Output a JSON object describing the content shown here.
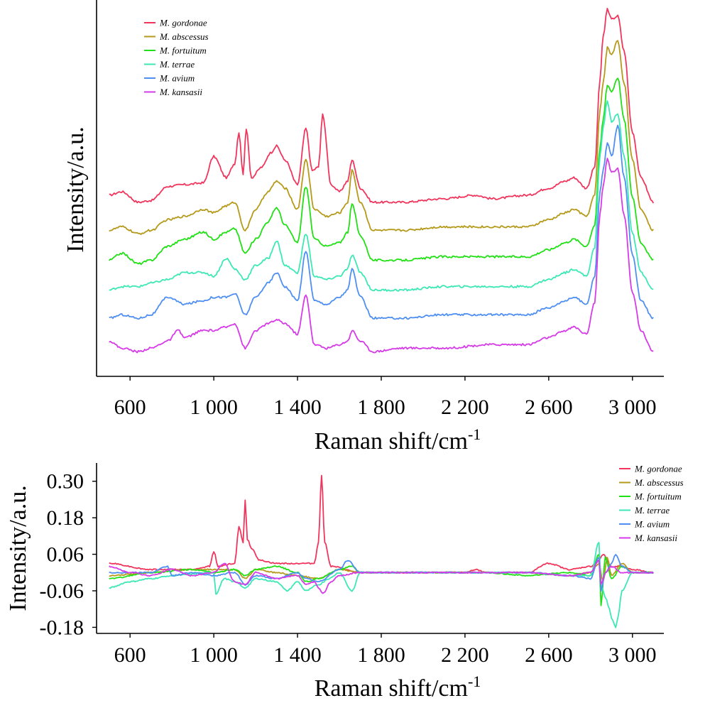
{
  "chart_data": [
    {
      "type": "line",
      "title": "",
      "xlabel": "Raman shift/cm",
      "xlabel_sup": "-1",
      "ylabel": "Intensity/a.u.",
      "xlim": [
        440,
        3150
      ],
      "ylim": [
        0,
        1
      ],
      "y_ticks_shown": false,
      "x_ticks": [
        600,
        1000,
        1400,
        1800,
        2200,
        2600,
        3000
      ],
      "x_tick_labels": [
        "600",
        "1 000",
        "1 400",
        "1 800",
        "2 200",
        "2 600",
        "3 000"
      ],
      "legend_position": "top-left",
      "grid": false,
      "series": [
        {
          "name": "M. gordonae",
          "color": "#f0365d",
          "offset": 0.455,
          "x": [
            500,
            560,
            640,
            700,
            780,
            860,
            950,
            1000,
            1060,
            1100,
            1120,
            1140,
            1155,
            1180,
            1230,
            1270,
            1300,
            1340,
            1400,
            1440,
            1470,
            1500,
            1520,
            1560,
            1600,
            1640,
            1660,
            1700,
            1760,
            1900,
            2100,
            2250,
            2330,
            2500,
            2600,
            2680,
            2720,
            2780,
            2820,
            2845,
            2860,
            2880,
            2900,
            2930,
            2960,
            3000,
            3040,
            3100
          ],
          "y": [
            0.02,
            0.03,
            0.0,
            0.005,
            0.045,
            0.05,
            0.055,
            0.13,
            0.07,
            0.11,
            0.2,
            0.08,
            0.21,
            0.07,
            0.1,
            0.14,
            0.16,
            0.12,
            0.05,
            0.21,
            0.09,
            0.1,
            0.25,
            0.05,
            0.03,
            0.06,
            0.12,
            0.04,
            0.0,
            0.0,
            0.01,
            0.02,
            0.01,
            0.02,
            0.04,
            0.06,
            0.07,
            0.04,
            0.1,
            0.35,
            0.47,
            0.55,
            0.52,
            0.53,
            0.43,
            0.2,
            0.07,
            0.0
          ]
        },
        {
          "name": "M. abscessus",
          "color": "#b59a1b",
          "offset": 0.375,
          "x": [
            500,
            560,
            640,
            700,
            780,
            860,
            950,
            1000,
            1060,
            1100,
            1150,
            1200,
            1260,
            1300,
            1340,
            1400,
            1440,
            1480,
            1540,
            1600,
            1640,
            1660,
            1700,
            1760,
            1900,
            2100,
            2330,
            2500,
            2600,
            2680,
            2720,
            2780,
            2820,
            2845,
            2860,
            2880,
            2900,
            2930,
            2960,
            3000,
            3040,
            3100
          ],
          "y": [
            0.0,
            0.01,
            -0.01,
            0.0,
            0.03,
            0.04,
            0.06,
            0.05,
            0.07,
            0.08,
            0.0,
            0.06,
            0.11,
            0.14,
            0.12,
            0.06,
            0.2,
            0.06,
            0.04,
            0.05,
            0.08,
            0.17,
            0.08,
            0.0,
            0.0,
            0.01,
            0.01,
            0.01,
            0.03,
            0.05,
            0.06,
            0.04,
            0.1,
            0.34,
            0.42,
            0.52,
            0.5,
            0.54,
            0.42,
            0.2,
            0.06,
            0.0
          ]
        },
        {
          "name": "M. fortuitum",
          "color": "#22e016",
          "offset": 0.29,
          "x": [
            500,
            560,
            640,
            700,
            780,
            860,
            950,
            1000,
            1060,
            1100,
            1150,
            1200,
            1260,
            1300,
            1340,
            1400,
            1440,
            1480,
            1540,
            1600,
            1640,
            1660,
            1700,
            1760,
            1900,
            2100,
            2330,
            2500,
            2600,
            2680,
            2720,
            2780,
            2820,
            2845,
            2860,
            2880,
            2900,
            2930,
            2960,
            3000,
            3040,
            3100
          ],
          "y": [
            0.0,
            0.02,
            -0.01,
            0.0,
            0.04,
            0.06,
            0.08,
            0.06,
            0.08,
            0.09,
            0.02,
            0.06,
            0.11,
            0.15,
            0.1,
            0.05,
            0.21,
            0.06,
            0.04,
            0.05,
            0.08,
            0.16,
            0.07,
            0.0,
            0.0,
            0.01,
            0.01,
            0.01,
            0.03,
            0.05,
            0.06,
            0.04,
            0.1,
            0.32,
            0.4,
            0.5,
            0.48,
            0.52,
            0.4,
            0.18,
            0.05,
            0.0
          ]
        },
        {
          "name": "M. terrae",
          "color": "#3de8b5",
          "offset": 0.205,
          "x": [
            500,
            560,
            640,
            700,
            780,
            860,
            950,
            1000,
            1060,
            1100,
            1150,
            1200,
            1260,
            1300,
            1340,
            1400,
            1440,
            1480,
            1540,
            1600,
            1640,
            1660,
            1700,
            1760,
            1900,
            2100,
            2330,
            2500,
            2600,
            2680,
            2720,
            2780,
            2820,
            2845,
            2860,
            2880,
            2900,
            2930,
            2960,
            3000,
            3040,
            3100
          ],
          "y": [
            0.0,
            0.01,
            0.01,
            0.02,
            0.03,
            0.05,
            0.05,
            0.04,
            0.09,
            0.06,
            0.03,
            0.07,
            0.09,
            0.14,
            0.07,
            0.05,
            0.16,
            0.04,
            0.03,
            0.04,
            0.06,
            0.1,
            0.05,
            0.0,
            0.0,
            0.01,
            0.01,
            0.01,
            0.03,
            0.05,
            0.06,
            0.04,
            0.12,
            0.38,
            0.46,
            0.54,
            0.48,
            0.5,
            0.38,
            0.16,
            0.05,
            0.0
          ]
        },
        {
          "name": "M. avium",
          "color": "#4f8ff2",
          "offset": 0.125,
          "x": [
            500,
            560,
            640,
            700,
            780,
            860,
            950,
            1000,
            1060,
            1100,
            1150,
            1200,
            1260,
            1300,
            1340,
            1400,
            1440,
            1480,
            1540,
            1600,
            1640,
            1660,
            1700,
            1760,
            1900,
            2100,
            2330,
            2500,
            2600,
            2680,
            2720,
            2780,
            2820,
            2845,
            2860,
            2880,
            2900,
            2930,
            2960,
            3000,
            3040,
            3100
          ],
          "y": [
            0.0,
            0.01,
            0.0,
            0.01,
            0.06,
            0.04,
            0.05,
            0.06,
            0.06,
            0.07,
            0.01,
            0.06,
            0.1,
            0.13,
            0.09,
            0.05,
            0.19,
            0.05,
            0.04,
            0.06,
            0.08,
            0.14,
            0.06,
            0.0,
            0.0,
            0.01,
            0.01,
            0.01,
            0.03,
            0.05,
            0.06,
            0.04,
            0.12,
            0.36,
            0.42,
            0.5,
            0.46,
            0.55,
            0.4,
            0.18,
            0.05,
            0.0
          ]
        },
        {
          "name": "M. kansasii",
          "color": "#d63be8",
          "offset": 0.04,
          "x": [
            500,
            560,
            640,
            700,
            780,
            830,
            860,
            950,
            1000,
            1060,
            1100,
            1150,
            1200,
            1260,
            1300,
            1340,
            1400,
            1440,
            1480,
            1540,
            1600,
            1640,
            1660,
            1700,
            1760,
            1900,
            2100,
            2330,
            2500,
            2600,
            2680,
            2720,
            2780,
            2820,
            2845,
            2860,
            2880,
            2900,
            2930,
            2960,
            3000,
            3040,
            3100
          ],
          "y": [
            0.02,
            0.0,
            -0.01,
            0.0,
            0.02,
            0.05,
            0.03,
            0.05,
            0.05,
            0.06,
            0.07,
            0.0,
            0.05,
            0.07,
            0.08,
            0.07,
            0.04,
            0.15,
            0.01,
            0.0,
            0.01,
            0.02,
            0.05,
            0.02,
            -0.01,
            0.0,
            0.0,
            0.01,
            0.01,
            0.03,
            0.05,
            0.06,
            0.04,
            0.13,
            0.38,
            0.46,
            0.54,
            0.5,
            0.51,
            0.38,
            0.16,
            0.05,
            -0.01
          ]
        }
      ]
    },
    {
      "type": "line",
      "title": "",
      "xlabel": "Raman shift/cm",
      "xlabel_sup": "-1",
      "ylabel": "Intensity/a.u.",
      "xlim": [
        440,
        3150
      ],
      "ylim": [
        -0.2,
        0.36
      ],
      "x_ticks": [
        600,
        1000,
        1400,
        1800,
        2200,
        2600,
        3000
      ],
      "x_tick_labels": [
        "600",
        "1 000",
        "1 400",
        "1 800",
        "2 200",
        "2 600",
        "3 000"
      ],
      "y_ticks": [
        0.3,
        0.18,
        0.06,
        -0.06,
        -0.18
      ],
      "y_tick_labels": [
        "0.30",
        "0.18",
        "0.06",
        "-0.06",
        "-0.18"
      ],
      "legend_position": "top-right",
      "grid": false,
      "series": [
        {
          "name": "M. gordonae",
          "color": "#f0365d",
          "x": [
            500,
            700,
            900,
            980,
            1000,
            1020,
            1100,
            1120,
            1140,
            1150,
            1160,
            1180,
            1220,
            1300,
            1400,
            1480,
            1500,
            1515,
            1530,
            1560,
            1700,
            2000,
            2200,
            2250,
            2300,
            2500,
            2600,
            2700,
            2800,
            2840,
            2860,
            2900,
            2950,
            3000,
            3100
          ],
          "y": [
            0.03,
            0.01,
            0.01,
            0.02,
            0.07,
            0.02,
            0.03,
            0.15,
            0.1,
            0.24,
            0.11,
            0.08,
            0.04,
            0.03,
            0.03,
            0.03,
            0.1,
            0.32,
            0.1,
            0.02,
            0.0,
            0.0,
            0.0,
            0.01,
            0.0,
            0.0,
            0.03,
            0.01,
            0.02,
            0.04,
            0.06,
            0.02,
            0.02,
            0.01,
            0.0
          ]
        },
        {
          "name": "M. abscessus",
          "color": "#b59a1b",
          "x": [
            500,
            700,
            900,
            1000,
            1100,
            1150,
            1200,
            1300,
            1400,
            1500,
            1600,
            1700,
            2000,
            2300,
            2500,
            2700,
            2800,
            2840,
            2860,
            2880,
            2900,
            2950,
            3000,
            3100
          ],
          "y": [
            -0.01,
            0.0,
            0.01,
            0.01,
            0.01,
            -0.02,
            0.01,
            0.0,
            -0.01,
            -0.02,
            0.01,
            0.0,
            0.0,
            0.0,
            0.0,
            -0.01,
            0.0,
            0.03,
            -0.03,
            0.05,
            -0.01,
            0.03,
            0.0,
            0.0
          ]
        },
        {
          "name": "M. fortuitum",
          "color": "#22e016",
          "x": [
            500,
            700,
            900,
            1000,
            1100,
            1150,
            1200,
            1300,
            1400,
            1440,
            1500,
            1600,
            1660,
            1700,
            2000,
            2300,
            2500,
            2700,
            2800,
            2840,
            2850,
            2870,
            2900,
            2950,
            3000,
            3100
          ],
          "y": [
            -0.02,
            0.0,
            0.01,
            0.0,
            0.01,
            -0.01,
            0.01,
            0.02,
            0.0,
            -0.03,
            -0.02,
            0.01,
            0.02,
            0.0,
            0.0,
            0.0,
            -0.01,
            0.0,
            -0.01,
            0.06,
            -0.11,
            0.05,
            -0.02,
            0.02,
            0.0,
            0.0
          ]
        },
        {
          "name": "M. terrae",
          "color": "#3de8b5",
          "x": [
            500,
            600,
            700,
            800,
            1000,
            1010,
            1050,
            1100,
            1150,
            1200,
            1300,
            1350,
            1400,
            1440,
            1500,
            1550,
            1600,
            1660,
            1700,
            2000,
            2300,
            2500,
            2700,
            2800,
            2840,
            2850,
            2870,
            2890,
            2900,
            2920,
            2930,
            2950,
            3000,
            3100
          ],
          "y": [
            -0.05,
            -0.03,
            -0.02,
            -0.01,
            0.0,
            -0.07,
            -0.02,
            -0.03,
            -0.05,
            -0.02,
            -0.03,
            -0.06,
            -0.03,
            -0.06,
            -0.04,
            -0.02,
            0.0,
            -0.06,
            0.0,
            0.0,
            0.0,
            0.0,
            -0.01,
            -0.01,
            0.1,
            -0.04,
            -0.08,
            -0.12,
            -0.15,
            -0.18,
            -0.15,
            -0.06,
            0.0,
            0.0
          ]
        },
        {
          "name": "M. avium",
          "color": "#4f8ff2",
          "x": [
            500,
            700,
            780,
            800,
            900,
            1000,
            1100,
            1150,
            1200,
            1300,
            1400,
            1440,
            1500,
            1600,
            1640,
            1700,
            2000,
            2300,
            2500,
            2700,
            2800,
            2840,
            2850,
            2870,
            2900,
            2920,
            2950,
            3000,
            3100
          ],
          "y": [
            0.0,
            0.0,
            0.02,
            -0.01,
            0.0,
            -0.01,
            0.0,
            -0.04,
            -0.01,
            -0.02,
            0.0,
            -0.02,
            -0.03,
            0.01,
            0.04,
            0.0,
            0.0,
            0.0,
            0.0,
            -0.01,
            -0.02,
            0.05,
            -0.06,
            0.0,
            0.03,
            0.06,
            0.02,
            0.0,
            0.0
          ]
        },
        {
          "name": "M. kansasii",
          "color": "#d63be8",
          "x": [
            500,
            600,
            700,
            800,
            900,
            1000,
            1050,
            1100,
            1150,
            1200,
            1300,
            1400,
            1440,
            1480,
            1500,
            1520,
            1560,
            1600,
            1700,
            2000,
            2300,
            2500,
            2700,
            2800,
            2840,
            2850,
            2870,
            2900,
            2950,
            3000,
            3100
          ],
          "y": [
            0.02,
            0.0,
            -0.01,
            0.01,
            -0.01,
            0.0,
            0.03,
            -0.03,
            -0.04,
            0.0,
            -0.02,
            -0.01,
            -0.04,
            -0.03,
            -0.05,
            -0.07,
            -0.03,
            -0.01,
            0.0,
            0.0,
            0.0,
            0.0,
            -0.01,
            0.0,
            0.04,
            -0.04,
            0.0,
            0.02,
            0.0,
            0.0,
            0.0
          ]
        }
      ]
    }
  ]
}
